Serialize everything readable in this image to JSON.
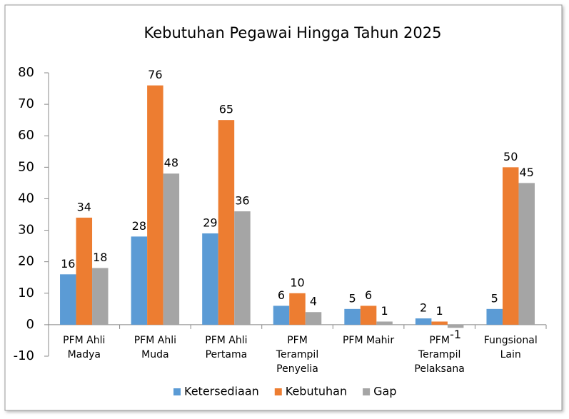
{
  "chart_data": {
    "type": "bar",
    "title": "Kebutuhan Pegawai Hingga Tahun 2025",
    "categories": [
      [
        "PFM Ahli",
        "Madya"
      ],
      [
        "PFM Ahli",
        "Muda"
      ],
      [
        "PFM Ahli",
        "Pertama"
      ],
      [
        "PFM",
        "Terampil",
        "Penyelia"
      ],
      [
        "PFM Mahir"
      ],
      [
        "PFM",
        "Terampil",
        "Pelaksana"
      ],
      [
        "Fungsional",
        "Lain"
      ]
    ],
    "series": [
      {
        "name": "Ketersediaan",
        "color": "#5b9bd5",
        "values": [
          16,
          28,
          29,
          6,
          5,
          2,
          5
        ]
      },
      {
        "name": "Kebutuhan",
        "color": "#ed7d31",
        "values": [
          34,
          76,
          65,
          10,
          6,
          1,
          50
        ]
      },
      {
        "name": "Gap",
        "color": "#a5a5a5",
        "values": [
          18,
          48,
          36,
          4,
          1,
          -1,
          45
        ]
      }
    ],
    "ylim": [
      -10,
      80
    ],
    "yticks": [
      -10,
      0,
      10,
      20,
      30,
      40,
      50,
      60,
      70,
      80
    ],
    "grid": false,
    "legend": "bottom"
  }
}
